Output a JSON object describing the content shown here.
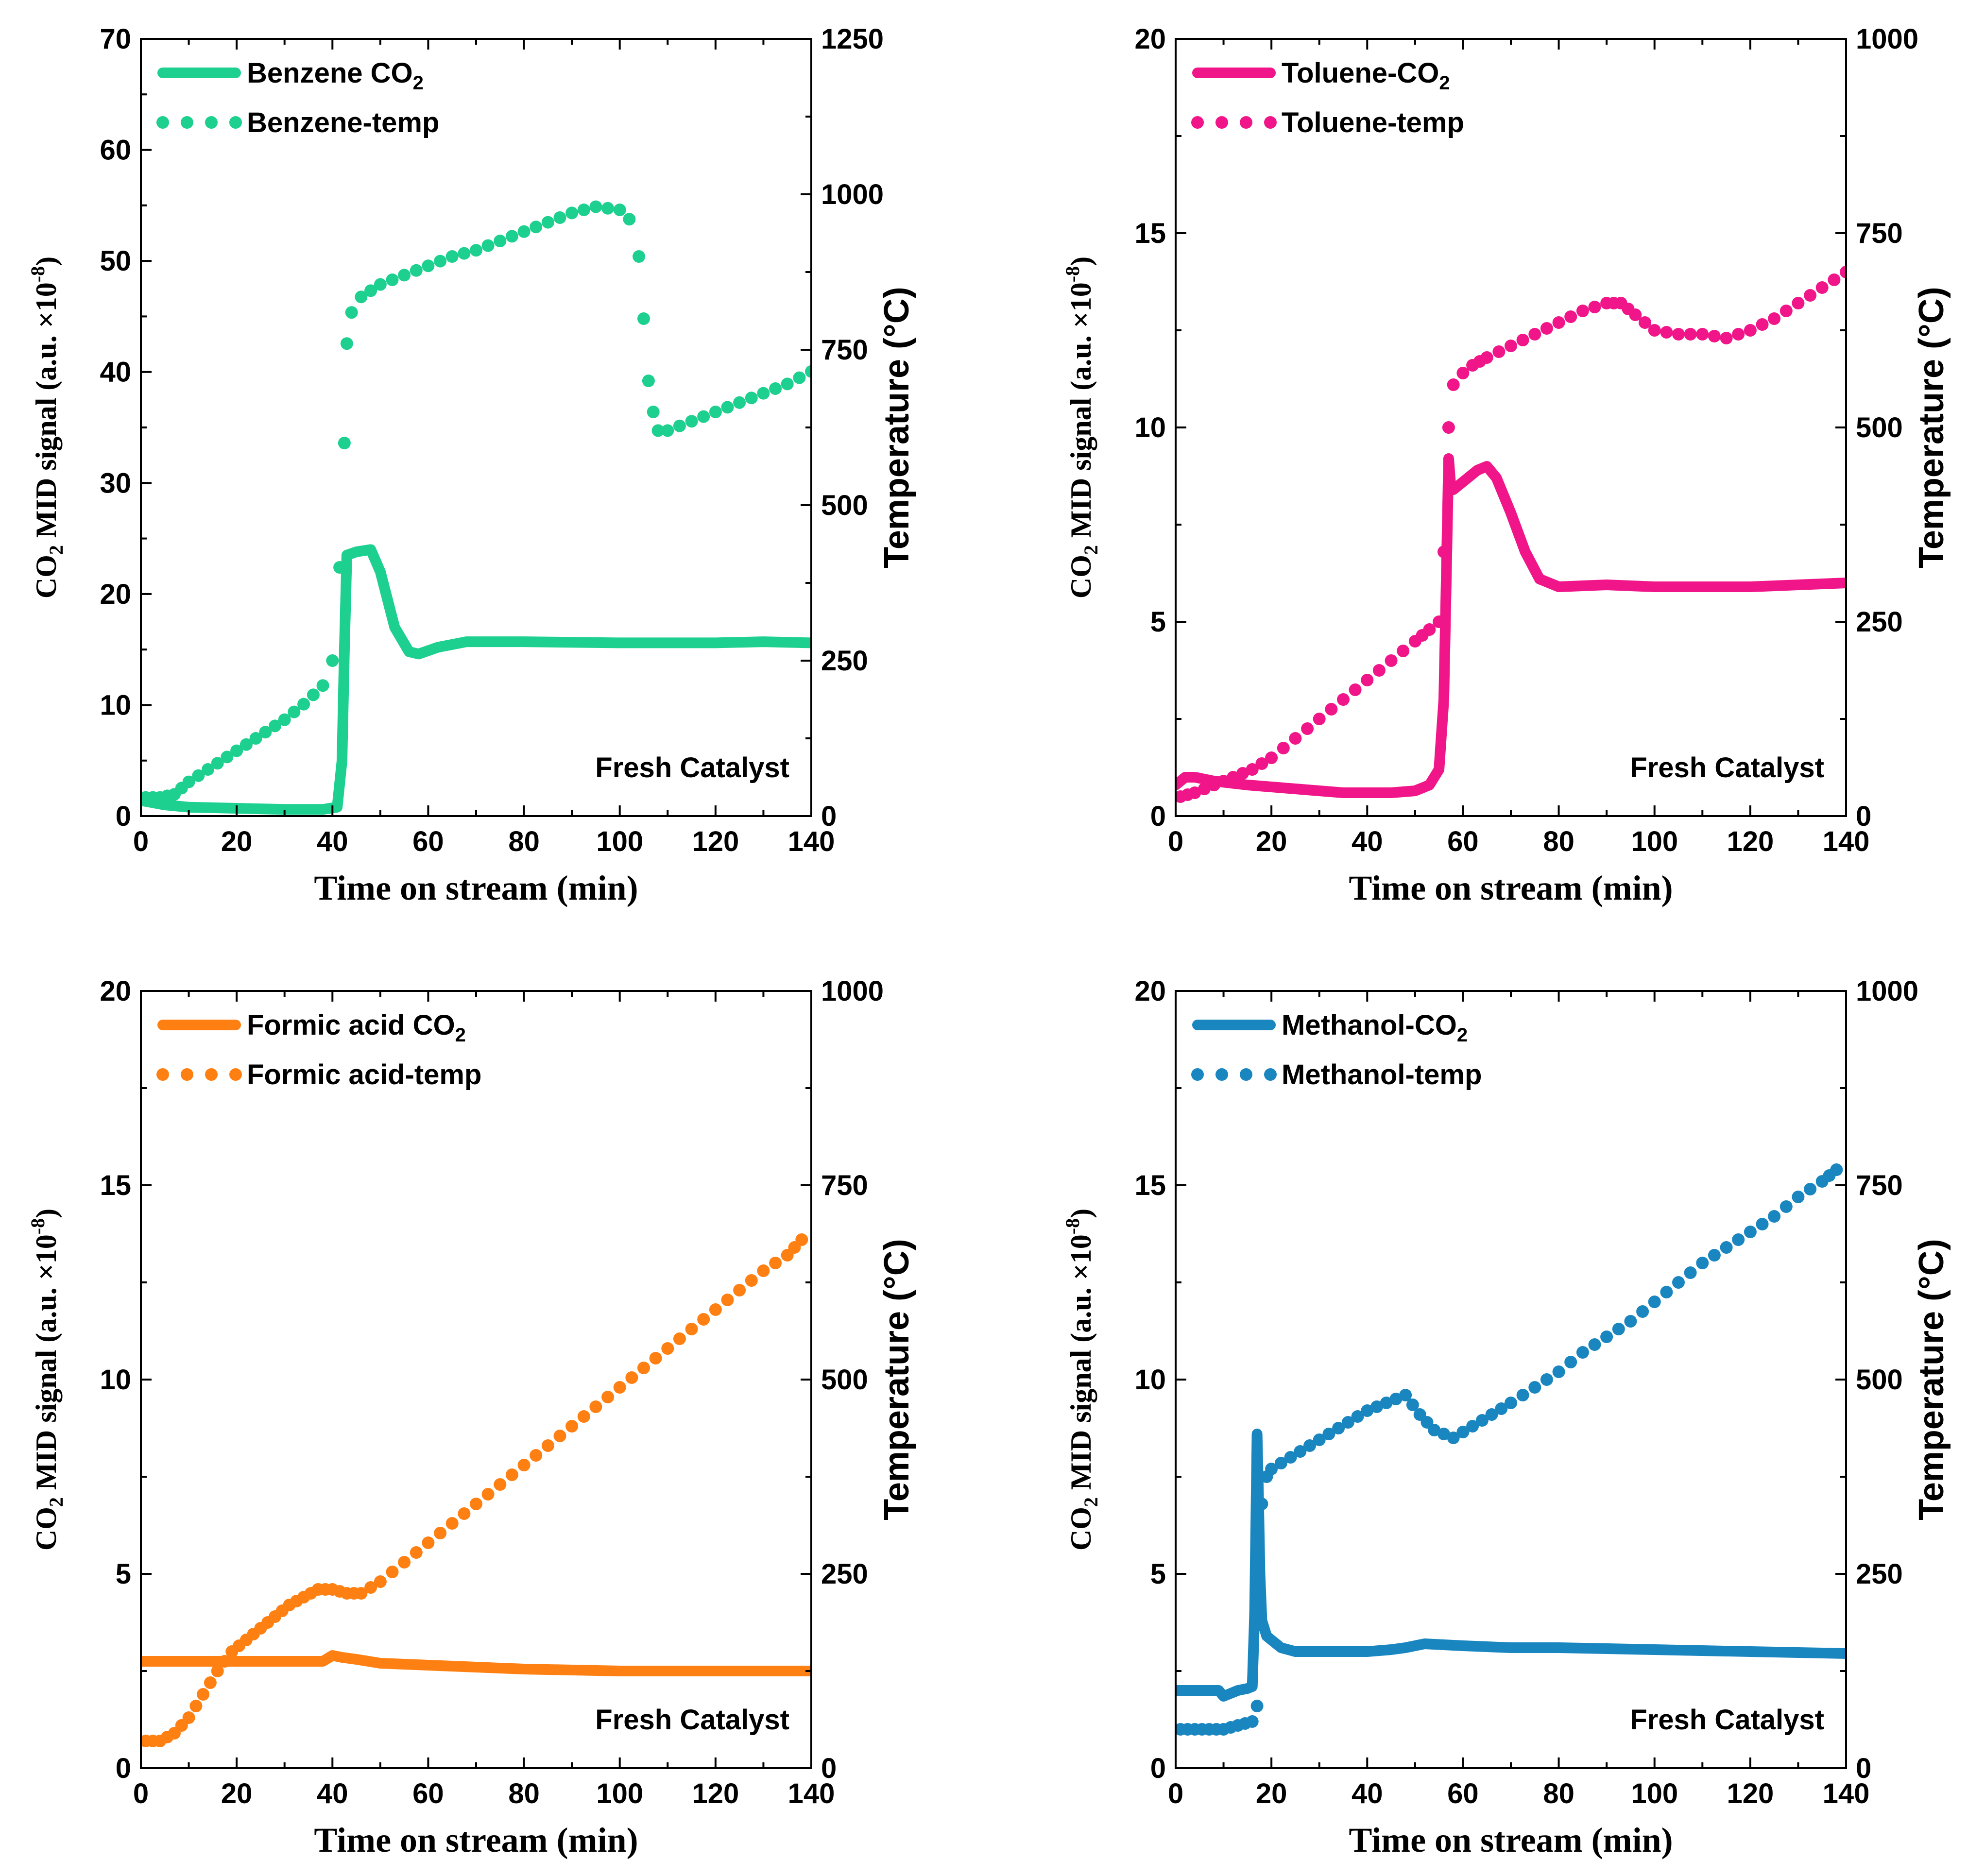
{
  "chart_data": [
    {
      "type": "line",
      "panel": "benzene",
      "color": "#1dd08f",
      "xlabel": "Time on stream (min)",
      "ylabel_main": "CO",
      "ylabel_sub": "2",
      "ylabel_rest": " MID signal (a.u. ×10",
      "ylabel_sup": "-8",
      "ylabel_close": ")",
      "y2label": "Temperature (°C)",
      "xlim": [
        0,
        140
      ],
      "ylim": [
        0,
        70
      ],
      "y2lim": [
        0,
        1250
      ],
      "xticks": [
        "0",
        "20",
        "40",
        "60",
        "80",
        "100",
        "120",
        "140"
      ],
      "yticks": [
        "0",
        "10",
        "20",
        "30",
        "40",
        "50",
        "60",
        "70"
      ],
      "y2ticks": [
        "0",
        "250",
        "500",
        "750",
        "1000",
        "1250"
      ],
      "annotation": "Fresh Catalyst",
      "legend": [
        {
          "main": "Benzene CO",
          "sub": "2",
          "style": "solid"
        },
        {
          "main": "Benzene-temp",
          "sub": "",
          "style": "dotted"
        }
      ],
      "series": [
        {
          "name": "Benzene CO2",
          "axis": "left",
          "style": "solid",
          "x": [
            0,
            5,
            10,
            20,
            30,
            38,
            41,
            42,
            42.5,
            43,
            45,
            48,
            50,
            53,
            56,
            58,
            62,
            68,
            80,
            100,
            120,
            130,
            140
          ],
          "y": [
            1.4,
            1.0,
            0.8,
            0.7,
            0.6,
            0.6,
            0.8,
            5,
            15,
            23.5,
            23.8,
            24,
            22,
            17,
            14.8,
            14.6,
            15.2,
            15.7,
            15.7,
            15.6,
            15.6,
            15.7,
            15.6
          ]
        },
        {
          "name": "Benzene-temp",
          "axis": "right",
          "style": "dotted",
          "x": [
            1,
            4,
            7,
            10,
            14,
            18,
            22,
            26,
            30,
            34,
            38,
            40,
            41.5,
            42.5,
            43,
            44,
            46,
            50,
            55,
            60,
            65,
            70,
            75,
            80,
            85,
            90,
            95,
            100,
            102,
            104,
            105,
            106,
            107,
            108,
            110,
            115,
            120,
            125,
            130,
            135,
            140
          ],
          "y": [
            30,
            30,
            35,
            55,
            75,
            95,
            115,
            135,
            155,
            180,
            210,
            250,
            400,
            600,
            760,
            810,
            835,
            855,
            870,
            885,
            900,
            910,
            925,
            940,
            955,
            970,
            980,
            975,
            960,
            900,
            800,
            700,
            650,
            620,
            620,
            635,
            650,
            665,
            680,
            695,
            715
          ]
        }
      ]
    },
    {
      "type": "line",
      "panel": "toluene",
      "color": "#f0168a",
      "xlabel": "Time on stream (min)",
      "ylabel_main": "CO",
      "ylabel_sub": "2",
      "ylabel_rest": " MID signal (a.u. ×10",
      "ylabel_sup": "-8",
      "ylabel_close": ")",
      "y2label": "Temperature (°C)",
      "xlim": [
        0,
        140
      ],
      "ylim": [
        0,
        20
      ],
      "y2lim": [
        0,
        1000
      ],
      "xticks": [
        "0",
        "20",
        "40",
        "60",
        "80",
        "100",
        "120",
        "140"
      ],
      "yticks": [
        "0",
        "5",
        "10",
        "15",
        "20"
      ],
      "y2ticks": [
        "0",
        "250",
        "500",
        "750",
        "1000"
      ],
      "annotation": "Fresh Catalyst",
      "legend": [
        {
          "main": "Toluene-CO",
          "sub": "2",
          "style": "solid"
        },
        {
          "main": "Toluene-temp",
          "sub": "",
          "style": "dotted"
        }
      ],
      "series": [
        {
          "name": "Toluene-CO2",
          "axis": "left",
          "style": "solid",
          "x": [
            0,
            2,
            4,
            8,
            15,
            25,
            35,
            45,
            50,
            53,
            55,
            56,
            56.5,
            57,
            57.5,
            58,
            60,
            63,
            65,
            67,
            70,
            73,
            76,
            80,
            90,
            100,
            110,
            120,
            130,
            140
          ],
          "y": [
            0.8,
            1.0,
            1.0,
            0.9,
            0.8,
            0.7,
            0.6,
            0.6,
            0.65,
            0.8,
            1.2,
            3,
            6,
            9.2,
            8.4,
            8.4,
            8.6,
            8.9,
            9.0,
            8.7,
            7.8,
            6.8,
            6.1,
            5.9,
            5.95,
            5.9,
            5.9,
            5.9,
            5.95,
            6.0
          ]
        },
        {
          "name": "Toluene-temp",
          "axis": "right",
          "style": "dotted",
          "x": [
            1,
            4,
            8,
            12,
            16,
            20,
            25,
            30,
            35,
            40,
            45,
            50,
            53,
            55,
            56,
            57,
            58,
            60,
            62,
            65,
            70,
            75,
            80,
            85,
            90,
            93,
            96,
            100,
            105,
            110,
            115,
            120,
            125,
            130,
            135,
            140
          ],
          "y": [
            25,
            30,
            40,
            50,
            60,
            75,
            100,
            125,
            150,
            175,
            200,
            225,
            240,
            250,
            340,
            500,
            555,
            570,
            580,
            590,
            605,
            620,
            635,
            650,
            660,
            660,
            645,
            625,
            620,
            620,
            615,
            625,
            640,
            660,
            680,
            700
          ]
        }
      ]
    },
    {
      "type": "line",
      "panel": "formic",
      "color": "#ff8012",
      "xlabel": "Time on stream (min)",
      "ylabel_main": "CO",
      "ylabel_sub": "2",
      "ylabel_rest": " MID signal (a.u. ×10",
      "ylabel_sup": "-8",
      "ylabel_close": ")",
      "y2label": "Temperature (°C)",
      "xlim": [
        0,
        140
      ],
      "ylim": [
        0,
        20
      ],
      "y2lim": [
        0,
        1000
      ],
      "xticks": [
        "0",
        "20",
        "40",
        "60",
        "80",
        "100",
        "120",
        "140"
      ],
      "yticks": [
        "0",
        "5",
        "10",
        "15",
        "20"
      ],
      "y2ticks": [
        "0",
        "250",
        "500",
        "750",
        "1000"
      ],
      "annotation": "Fresh Catalyst",
      "legend": [
        {
          "main": "Formic acid CO",
          "sub": "2",
          "style": "solid"
        },
        {
          "main": "Formic acid-temp",
          "sub": "",
          "style": "dotted"
        }
      ],
      "series": [
        {
          "name": "Formic acid CO2",
          "axis": "left",
          "style": "solid",
          "x": [
            0,
            10,
            20,
            30,
            38,
            40,
            42,
            45,
            50,
            60,
            70,
            80,
            100,
            120,
            140
          ],
          "y": [
            2.75,
            2.75,
            2.75,
            2.75,
            2.75,
            2.9,
            2.85,
            2.8,
            2.7,
            2.65,
            2.6,
            2.55,
            2.5,
            2.5,
            2.5
          ]
        },
        {
          "name": "Formic acid-temp",
          "axis": "right",
          "style": "dotted",
          "x": [
            1,
            4,
            7,
            10,
            13,
            16,
            19,
            22,
            25,
            28,
            31,
            34,
            37,
            40,
            43,
            46,
            50,
            55,
            60,
            65,
            70,
            75,
            80,
            85,
            90,
            95,
            100,
            105,
            110,
            115,
            120,
            125,
            130,
            135,
            138
          ],
          "y": [
            35,
            35,
            45,
            65,
            95,
            125,
            150,
            165,
            180,
            195,
            210,
            220,
            230,
            230,
            225,
            225,
            240,
            265,
            290,
            315,
            340,
            365,
            390,
            415,
            440,
            465,
            490,
            515,
            540,
            565,
            590,
            615,
            640,
            660,
            680
          ]
        }
      ]
    },
    {
      "type": "line",
      "panel": "methanol",
      "color": "#1a86c0",
      "xlabel": "Time on stream (min)",
      "ylabel_main": "CO",
      "ylabel_sub": "2",
      "ylabel_rest": " MID signal (a.u. ×10",
      "ylabel_sup": "-8",
      "ylabel_close": ")",
      "y2label": "Temperature (°C)",
      "xlim": [
        0,
        140
      ],
      "ylim": [
        0,
        20
      ],
      "y2lim": [
        0,
        1000
      ],
      "xticks": [
        "0",
        "20",
        "40",
        "60",
        "80",
        "100",
        "120",
        "140"
      ],
      "yticks": [
        "0",
        "5",
        "10",
        "15",
        "20"
      ],
      "y2ticks": [
        "0",
        "250",
        "500",
        "750",
        "1000"
      ],
      "annotation": "Fresh Catalyst",
      "legend": [
        {
          "main": "Methanol-CO",
          "sub": "2",
          "style": "solid"
        },
        {
          "main": "Methanol-temp",
          "sub": "",
          "style": "dotted"
        }
      ],
      "series": [
        {
          "name": "Methanol-CO2",
          "axis": "left",
          "style": "solid",
          "x": [
            0,
            5,
            9,
            10,
            11,
            13,
            15,
            16,
            16.5,
            17,
            17.3,
            17.6,
            18,
            18.5,
            19,
            20,
            22,
            25,
            30,
            40,
            45,
            48,
            52,
            60,
            70,
            80,
            100,
            120,
            140
          ],
          "y": [
            2.0,
            2.0,
            2.0,
            1.85,
            1.9,
            2.0,
            2.05,
            2.1,
            4,
            8.6,
            7,
            5,
            3.8,
            3.6,
            3.4,
            3.3,
            3.1,
            3.0,
            3.0,
            3.0,
            3.05,
            3.1,
            3.2,
            3.15,
            3.1,
            3.1,
            3.05,
            3.0,
            2.95
          ]
        },
        {
          "name": "Methanol-temp",
          "axis": "right",
          "style": "dotted",
          "x": [
            1,
            4,
            7,
            10,
            13,
            16,
            17,
            17.5,
            18,
            19,
            20,
            24,
            28,
            32,
            36,
            40,
            44,
            48,
            51,
            54,
            58,
            62,
            66,
            70,
            75,
            80,
            85,
            90,
            95,
            100,
            105,
            110,
            115,
            120,
            125,
            130,
            135,
            138
          ],
          "y": [
            50,
            50,
            50,
            50,
            55,
            60,
            80,
            200,
            340,
            375,
            385,
            400,
            415,
            430,
            445,
            460,
            470,
            480,
            455,
            435,
            425,
            440,
            455,
            470,
            490,
            510,
            535,
            555,
            575,
            600,
            625,
            650,
            670,
            690,
            710,
            735,
            755,
            770
          ]
        }
      ]
    }
  ]
}
